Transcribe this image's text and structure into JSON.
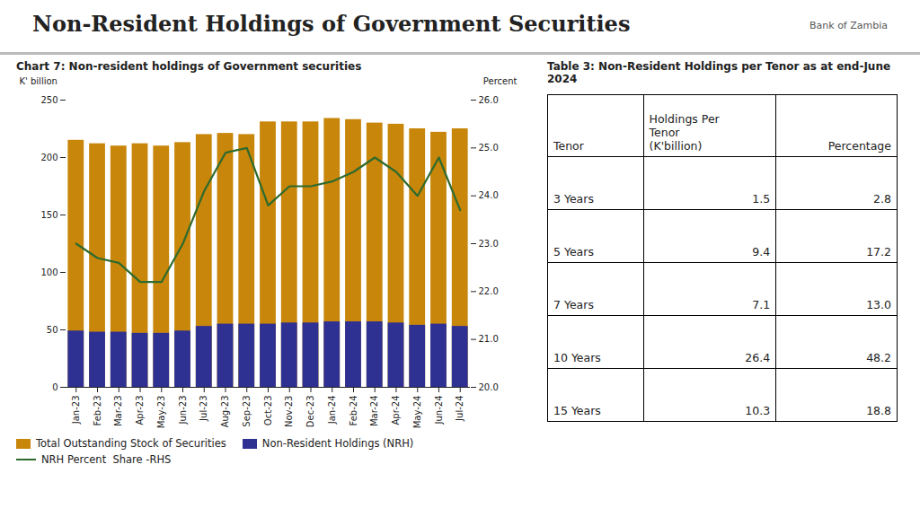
{
  "chart_data": {
    "type": "bar",
    "title": "Non-Resident Holdings of Government Securities",
    "subtitle": "Chart 7: Non-resident holdings of Government securities",
    "annotations": [
      "Bank of Zambia"
    ],
    "categories": [
      "Jan-23",
      "Feb-23",
      "Mar-23",
      "Apr-23",
      "May-23",
      "Jun-23",
      "Jul-23",
      "Aug-23",
      "Sep-23",
      "Oct-23",
      "Nov-23",
      "Dec-23",
      "Jan-24",
      "Feb-24",
      "Mar-24",
      "Apr-24",
      "May-24",
      "Jun-24",
      "Jul-24"
    ],
    "series": [
      {
        "name": "Total Outstanding Stock of Securities",
        "type": "bar",
        "color": "#c8860a",
        "values": [
          215,
          212,
          210,
          212,
          210,
          213,
          220,
          221,
          220,
          231,
          231,
          231,
          234,
          233,
          230,
          229,
          225,
          222,
          225
        ]
      },
      {
        "name": "Non-Resident Holdings (NRH)",
        "type": "bar",
        "color": "#2e3192",
        "values": [
          49,
          48,
          48,
          47,
          47,
          49,
          53,
          55,
          55,
          55,
          56,
          56,
          57,
          57,
          57,
          56,
          54,
          55,
          53
        ]
      },
      {
        "name": "NRH Percent  Share -RHS",
        "type": "line",
        "color": "#2d6a2d",
        "axis": "y2",
        "values": [
          23.0,
          22.7,
          22.6,
          22.2,
          22.2,
          23.0,
          24.1,
          24.9,
          25.0,
          23.8,
          24.2,
          24.2,
          24.3,
          24.5,
          24.8,
          24.5,
          24.0,
          24.8,
          23.7
        ]
      }
    ],
    "stacked": false,
    "ylabel": "K' billion",
    "y2label": "Percent",
    "ylim": [
      0,
      250
    ],
    "yticks": [
      0,
      50,
      100,
      150,
      200,
      250
    ],
    "y2lim": [
      20,
      26
    ],
    "y2ticks": [
      20,
      21,
      22,
      23,
      24,
      25,
      26
    ],
    "grid": false,
    "legend": "bottom"
  },
  "table": {
    "title": "Table 3: Non-Resident Holdings per Tenor as at end-June 2024",
    "columns": [
      "Tenor",
      "Holdings Per\nTenor\n(K'billion)",
      "Percentage"
    ],
    "rows": [
      [
        "3 Years",
        "1.5",
        "2.8"
      ],
      [
        "5 Years",
        "9.4",
        "17.2"
      ],
      [
        "7 Years",
        "7.1",
        "13.0"
      ],
      [
        "10 Years",
        "26.4",
        "48.2"
      ],
      [
        "15 Years",
        "10.3",
        "18.8"
      ]
    ]
  }
}
